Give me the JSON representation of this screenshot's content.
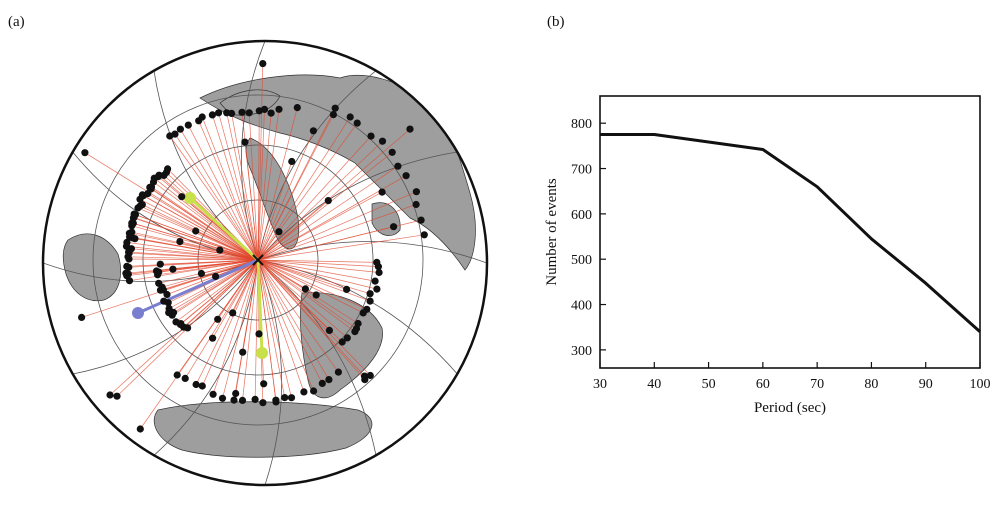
{
  "panels": {
    "a": "(a)",
    "b": "(b)"
  },
  "map": {
    "land_color": "#9e9e9e",
    "ray_color": "#e2452b",
    "event_color": "#111111",
    "highlight_paths": [
      {
        "name": "yellow",
        "color": "#c8e04a"
      },
      {
        "name": "blue",
        "color": "#7a7ecf"
      }
    ]
  },
  "chart_data": {
    "type": "line",
    "x": [
      30,
      40,
      60,
      70,
      80,
      90,
      100
    ],
    "y": [
      775,
      775,
      742,
      660,
      545,
      447,
      340
    ],
    "xlabel": "Period (sec)",
    "ylabel": "Number of events",
    "xlim": [
      30,
      100
    ],
    "ylim": [
      260,
      860
    ],
    "xticks": [
      30,
      40,
      50,
      60,
      70,
      80,
      90,
      100
    ],
    "yticks": [
      300,
      400,
      500,
      600,
      700,
      800
    ],
    "grid": false,
    "line_color": "#111111"
  }
}
